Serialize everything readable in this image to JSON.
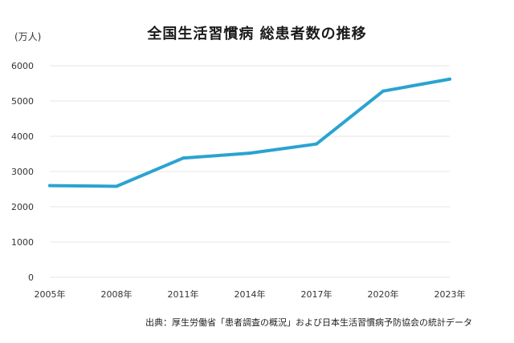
{
  "chart_data": {
    "type": "line",
    "title": "全国生活習慣病 総患者数の推移",
    "ylabel": "(万人)",
    "xlabel": "",
    "categories": [
      "2005年",
      "2008年",
      "2011年",
      "2014年",
      "2017年",
      "2020年",
      "2023年"
    ],
    "series": [
      {
        "values": [
          2600,
          2580,
          3380,
          3520,
          3780,
          5280,
          5620
        ]
      }
    ],
    "ylim": [
      0,
      6000
    ],
    "yticks": [
      "0",
      "1000",
      "2000",
      "3000",
      "4000",
      "5000",
      "6000"
    ],
    "grid": true,
    "line_color": "#2aa3d1",
    "grid_color": "#e6e6e6"
  },
  "source": "出典：厚生労働省「患者調査の概況」および日本生活習慣病予防協会の統計データ"
}
